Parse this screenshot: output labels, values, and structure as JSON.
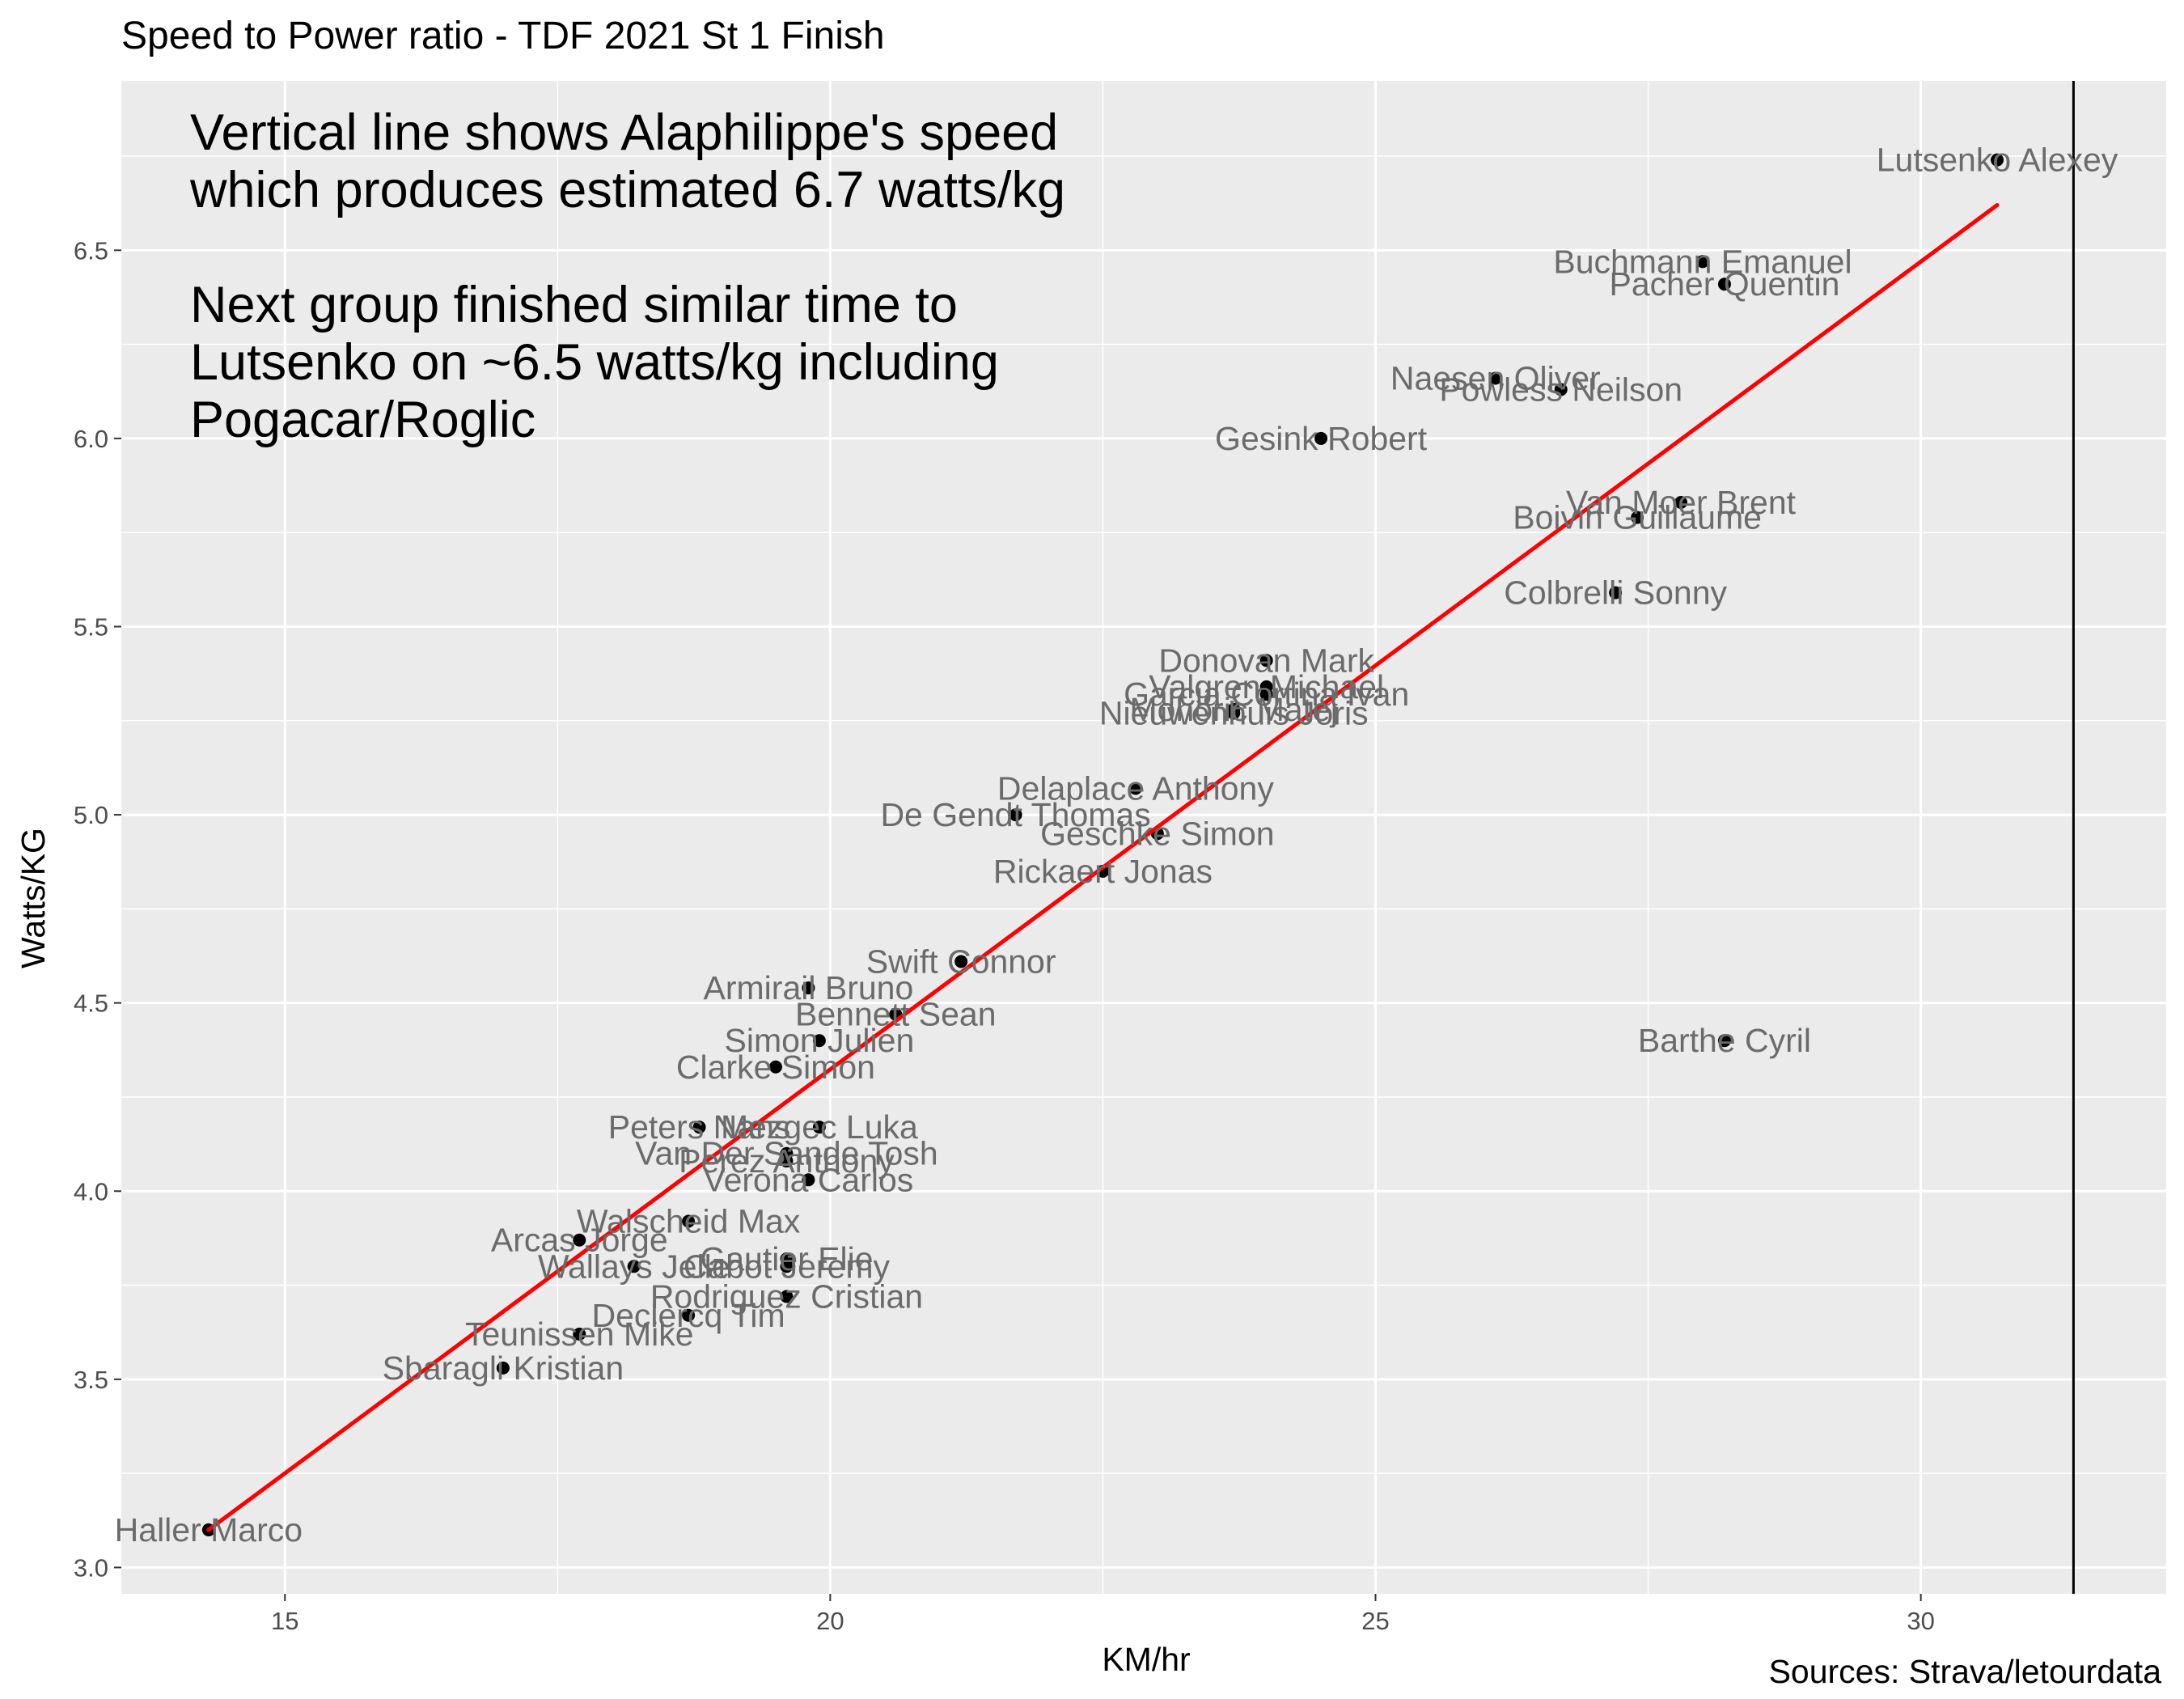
{
  "chart_data": {
    "type": "scatter",
    "title": "Speed to Power ratio - TDF 2021 St 1 Finish",
    "xlabel": "KM/hr",
    "ylabel": "Watts/KG",
    "caption": "Sources: Strava/letourdata",
    "xlim": [
      13.5,
      32.25
    ],
    "ylim": [
      2.93,
      6.95
    ],
    "x_ticks": [
      15,
      20,
      25,
      30
    ],
    "y_ticks": [
      3.0,
      3.5,
      4.0,
      4.5,
      5.0,
      5.5,
      6.0,
      6.5
    ],
    "grid": true,
    "annotation": [
      "Vertical line shows Alaphilippe's speed",
      "which produces estimated 6.7 watts/kg",
      "",
      "Next group finished similar time to",
      "Lutsenko on ~6.5 watts/kg including",
      "Pogacar/Roglic"
    ],
    "vertical_line": {
      "x": 31.4
    },
    "trend_line": {
      "x": [
        14.3,
        30.7
      ],
      "y": [
        3.1,
        6.62
      ],
      "color": "#ff0000"
    },
    "points": [
      {
        "label": "Lutsenko Alexey",
        "x": 30.7,
        "y": 6.74
      },
      {
        "label": "Buchmann Emanuel",
        "x": 28.0,
        "y": 6.47
      },
      {
        "label": "Pacher Quentin",
        "x": 28.2,
        "y": 6.41
      },
      {
        "label": "Naesen Oliver",
        "x": 26.1,
        "y": 6.16
      },
      {
        "label": "Powless Neilson",
        "x": 26.7,
        "y": 6.13
      },
      {
        "label": "Gesink Robert",
        "x": 24.5,
        "y": 6.0
      },
      {
        "label": "Van Moer Brent",
        "x": 27.8,
        "y": 5.83
      },
      {
        "label": "Boivin Guillaume",
        "x": 27.4,
        "y": 5.79
      },
      {
        "label": "Colbrelli Sonny",
        "x": 27.2,
        "y": 5.59
      },
      {
        "label": "Barthe Cyril",
        "x": 28.2,
        "y": 4.4
      },
      {
        "label": "Donovan Mark",
        "x": 24.0,
        "y": 5.41
      },
      {
        "label": "Valgren Michael",
        "x": 24.0,
        "y": 5.34
      },
      {
        "label": "Garcia Cortina Ivan",
        "x": 24.0,
        "y": 5.32
      },
      {
        "label": "Mohoric Matej",
        "x": 23.7,
        "y": 5.28
      },
      {
        "label": "Nieuwenhuis Joris",
        "x": 23.7,
        "y": 5.27
      },
      {
        "label": "Delaplace Anthony",
        "x": 22.8,
        "y": 5.07
      },
      {
        "label": "De Gendt Thomas",
        "x": 21.7,
        "y": 5.0
      },
      {
        "label": "Geschke Simon",
        "x": 23.0,
        "y": 4.95
      },
      {
        "label": "Rickaert Jonas",
        "x": 22.5,
        "y": 4.85
      },
      {
        "label": "Swift Connor",
        "x": 21.2,
        "y": 4.61
      },
      {
        "label": "Armirail Bruno",
        "x": 19.8,
        "y": 4.54
      },
      {
        "label": "Bennett Sean",
        "x": 20.6,
        "y": 4.47
      },
      {
        "label": "Simon Julien",
        "x": 19.9,
        "y": 4.4
      },
      {
        "label": "Clarke Simon",
        "x": 19.5,
        "y": 4.33
      },
      {
        "label": "Peters Nans",
        "x": 18.8,
        "y": 4.17
      },
      {
        "label": "Mezgec Luka",
        "x": 19.9,
        "y": 4.17
      },
      {
        "label": "Van Der Sande Tosh",
        "x": 19.6,
        "y": 4.1
      },
      {
        "label": "Perez Anthony",
        "x": 19.6,
        "y": 4.08
      },
      {
        "label": "Verona Carlos",
        "x": 19.8,
        "y": 4.03
      },
      {
        "label": "Walscheid Max",
        "x": 18.7,
        "y": 3.92
      },
      {
        "label": "Arcas Jorge",
        "x": 17.7,
        "y": 3.87
      },
      {
        "label": "Gautier Elie",
        "x": 19.6,
        "y": 3.82
      },
      {
        "label": "Wallays Jelle",
        "x": 18.2,
        "y": 3.8
      },
      {
        "label": "Cabot Jeremy",
        "x": 19.6,
        "y": 3.8
      },
      {
        "label": "Rodriguez Cristian",
        "x": 19.6,
        "y": 3.72
      },
      {
        "label": "Declercq Tim",
        "x": 18.7,
        "y": 3.67
      },
      {
        "label": "Teunissen Mike",
        "x": 17.7,
        "y": 3.62
      },
      {
        "label": "Sbaragli Kristian",
        "x": 17.0,
        "y": 3.53
      },
      {
        "label": "Haller Marco",
        "x": 14.3,
        "y": 3.1
      }
    ]
  }
}
